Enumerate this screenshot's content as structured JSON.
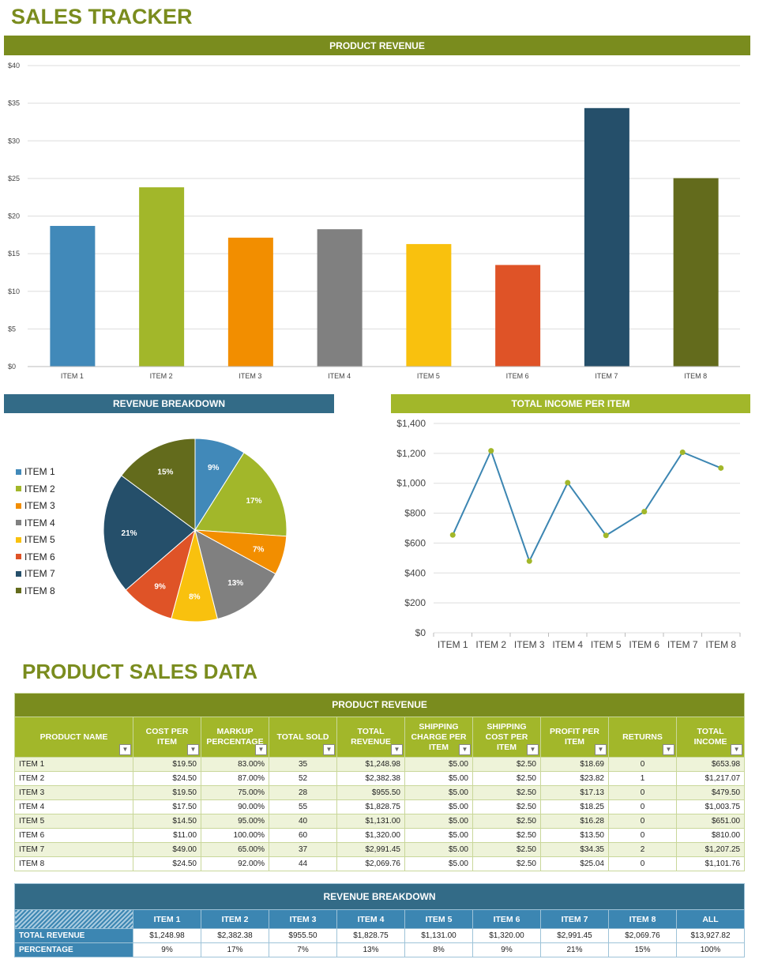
{
  "title": "SALES TRACKER",
  "bar_header": "PRODUCT REVENUE",
  "pie_header": "REVENUE BREAKDOWN",
  "line_header": "TOTAL INCOME PER ITEM",
  "section_title": "PRODUCT SALES DATA",
  "colors": {
    "olive": "#7a8c1e",
    "lime": "#a2b72a",
    "blue": "#336b87",
    "items": [
      "#4189b9",
      "#a2b72a",
      "#f28e00",
      "#808080",
      "#f9c10e",
      "#df5327",
      "#254f6a",
      "#636b1c"
    ]
  },
  "chart_data": [
    {
      "type": "bar",
      "title": "PRODUCT REVENUE",
      "categories": [
        "ITEM 1",
        "ITEM 2",
        "ITEM 3",
        "ITEM 4",
        "ITEM 5",
        "ITEM 6",
        "ITEM 7",
        "ITEM 8"
      ],
      "values": [
        18.69,
        23.82,
        17.13,
        18.25,
        16.28,
        13.5,
        34.35,
        25.04
      ],
      "ylim": [
        0,
        40
      ],
      "yticks": [
        "$0",
        "$5",
        "$10",
        "$15",
        "$20",
        "$25",
        "$30",
        "$35",
        "$40"
      ],
      "grid": true
    },
    {
      "type": "pie",
      "title": "REVENUE BREAKDOWN",
      "categories": [
        "ITEM 1",
        "ITEM 2",
        "ITEM 3",
        "ITEM 4",
        "ITEM 5",
        "ITEM 6",
        "ITEM 7",
        "ITEM 8"
      ],
      "values": [
        1248.98,
        2382.38,
        955.5,
        1828.75,
        1131,
        1320,
        2991.45,
        2069.76
      ],
      "labels": [
        "9%",
        "17%",
        "7%",
        "13%",
        "8%",
        "9%",
        "21%",
        "15%"
      ],
      "legend": "left"
    },
    {
      "type": "line",
      "title": "TOTAL INCOME PER ITEM",
      "categories": [
        "ITEM 1",
        "ITEM 2",
        "ITEM 3",
        "ITEM 4",
        "ITEM 5",
        "ITEM 6",
        "ITEM 7",
        "ITEM 8"
      ],
      "values": [
        653.98,
        1217.07,
        479.5,
        1003.75,
        651,
        810,
        1207.25,
        1101.76
      ],
      "ylim": [
        0,
        1400
      ],
      "yticks": [
        "$0",
        "$200",
        "$400",
        "$600",
        "$800",
        "$1,000",
        "$1,200",
        "$1,400"
      ],
      "grid": true
    }
  ],
  "table1": {
    "title": "PRODUCT REVENUE",
    "headers": [
      "PRODUCT NAME",
      "COST PER ITEM",
      "MARKUP PERCENTAGE",
      "TOTAL SOLD",
      "TOTAL REVENUE",
      "SHIPPING CHARGE PER ITEM",
      "SHIPPING COST PER ITEM",
      "PROFIT PER ITEM",
      "RETURNS",
      "TOTAL INCOME"
    ],
    "rows": [
      [
        "ITEM 1",
        "$19.50",
        "83.00%",
        "35",
        "$1,248.98",
        "$5.00",
        "$2.50",
        "$18.69",
        "0",
        "$653.98"
      ],
      [
        "ITEM 2",
        "$24.50",
        "87.00%",
        "52",
        "$2,382.38",
        "$5.00",
        "$2.50",
        "$23.82",
        "1",
        "$1,217.07"
      ],
      [
        "ITEM 3",
        "$19.50",
        "75.00%",
        "28",
        "$955.50",
        "$5.00",
        "$2.50",
        "$17.13",
        "0",
        "$479.50"
      ],
      [
        "ITEM 4",
        "$17.50",
        "90.00%",
        "55",
        "$1,828.75",
        "$5.00",
        "$2.50",
        "$18.25",
        "0",
        "$1,003.75"
      ],
      [
        "ITEM 5",
        "$14.50",
        "95.00%",
        "40",
        "$1,131.00",
        "$5.00",
        "$2.50",
        "$16.28",
        "0",
        "$651.00"
      ],
      [
        "ITEM 6",
        "$11.00",
        "100.00%",
        "60",
        "$1,320.00",
        "$5.00",
        "$2.50",
        "$13.50",
        "0",
        "$810.00"
      ],
      [
        "ITEM 7",
        "$49.00",
        "65.00%",
        "37",
        "$2,991.45",
        "$5.00",
        "$2.50",
        "$34.35",
        "2",
        "$1,207.25"
      ],
      [
        "ITEM 8",
        "$24.50",
        "92.00%",
        "44",
        "$2,069.76",
        "$5.00",
        "$2.50",
        "$25.04",
        "0",
        "$1,101.76"
      ]
    ]
  },
  "table2": {
    "title": "REVENUE BREAKDOWN",
    "headers": [
      "ITEM 1",
      "ITEM 2",
      "ITEM 3",
      "ITEM 4",
      "ITEM 5",
      "ITEM 6",
      "ITEM 7",
      "ITEM 8",
      "ALL"
    ],
    "rows": [
      {
        "label": "TOTAL REVENUE",
        "values": [
          "$1,248.98",
          "$2,382.38",
          "$955.50",
          "$1,828.75",
          "$1,131.00",
          "$1,320.00",
          "$2,991.45",
          "$2,069.76",
          "$13,927.82"
        ]
      },
      {
        "label": "PERCENTAGE",
        "values": [
          "9%",
          "17%",
          "7%",
          "13%",
          "8%",
          "9%",
          "21%",
          "15%",
          "100%"
        ]
      }
    ]
  }
}
